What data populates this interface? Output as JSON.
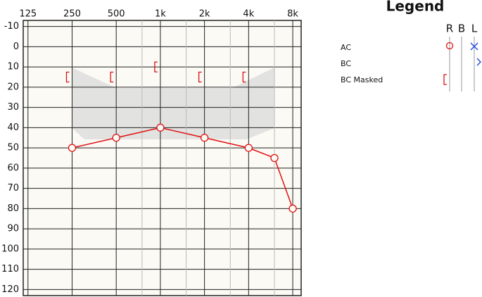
{
  "chart_data": {
    "type": "audiogram",
    "xscale": "log",
    "xlim": [
      116,
      9130
    ],
    "ylim": [
      -13,
      123
    ],
    "xticks": [
      125,
      250,
      500,
      {
        "value": 1000,
        "label": "1k"
      },
      {
        "value": 2000,
        "label": "2k"
      },
      {
        "value": 4000,
        "label": "4k"
      },
      {
        "value": 8000,
        "label": "8k"
      }
    ],
    "minor_xticks": [
      750,
      1500,
      3000,
      6000
    ],
    "yticks": [
      -10,
      0,
      10,
      20,
      30,
      40,
      50,
      60,
      70,
      80,
      90,
      100,
      110,
      120
    ],
    "grid": true,
    "series": [
      {
        "marker": "circle",
        "color": "#e01010",
        "line": true,
        "x": [
          250,
          500,
          1000,
          2000,
          4000,
          6000,
          8000
        ],
        "values": [
          50,
          45,
          40,
          45,
          50,
          55,
          80
        ]
      },
      {
        "marker": "bracket",
        "color": "#e01010",
        "line": false,
        "x": [
          250,
          500,
          1000,
          2000,
          4000
        ],
        "values": [
          15,
          15,
          10,
          15,
          15
        ]
      }
    ],
    "legend": {
      "title": "Legend",
      "columns": [
        "R",
        "B",
        "L"
      ],
      "rows": [
        "AC",
        "BC",
        "BC Masked"
      ]
    }
  }
}
